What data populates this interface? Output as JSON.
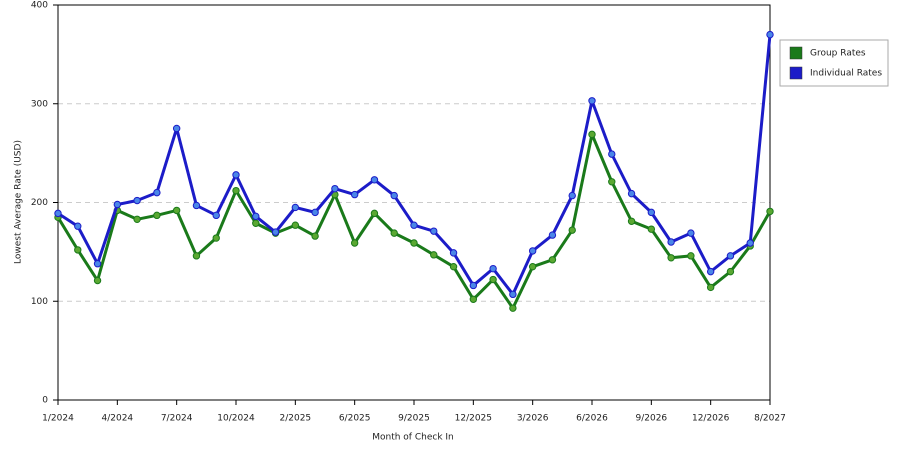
{
  "chart_data": {
    "type": "line",
    "x_label": "Month of Check In",
    "y_label": "Lowest Average Rate (USD)",
    "categories": [
      "1/2024",
      null,
      null,
      "4/2024",
      null,
      null,
      "7/2024",
      null,
      null,
      "10/2024",
      null,
      null,
      "2/2025",
      null,
      null,
      "6/2025",
      null,
      null,
      "9/2025",
      null,
      null,
      "12/2025",
      null,
      null,
      "3/2026",
      null,
      null,
      "6/2026",
      null,
      null,
      "9/2026",
      null,
      null,
      "12/2026",
      null,
      null,
      "8/2027"
    ],
    "series": [
      {
        "name": "Group Rates",
        "color": "#1a7a1a",
        "marker_color": "#5aa832",
        "values": [
          185,
          152,
          121,
          192,
          183,
          187,
          192,
          146,
          164,
          212,
          179,
          169,
          177,
          166,
          208,
          159,
          189,
          169,
          159,
          147,
          135,
          102,
          122,
          93,
          135,
          142,
          172,
          269,
          221,
          181,
          173,
          144,
          146,
          114,
          130,
          156,
          191
        ]
      },
      {
        "name": "Individual Rates",
        "color": "#1c1cc8",
        "marker_color": "#4a86e8",
        "values": [
          189,
          176,
          138,
          198,
          202,
          210,
          275,
          197,
          187,
          228,
          186,
          170,
          195,
          190,
          214,
          208,
          223,
          207,
          177,
          171,
          149,
          116,
          133,
          107,
          151,
          167,
          207,
          303,
          249,
          209,
          190,
          160,
          169,
          130,
          146,
          159,
          370
        ]
      }
    ],
    "ylim": [
      0,
      400
    ],
    "yticks": [
      0,
      100,
      200,
      300,
      400
    ],
    "grid": true,
    "legend": "right"
  }
}
